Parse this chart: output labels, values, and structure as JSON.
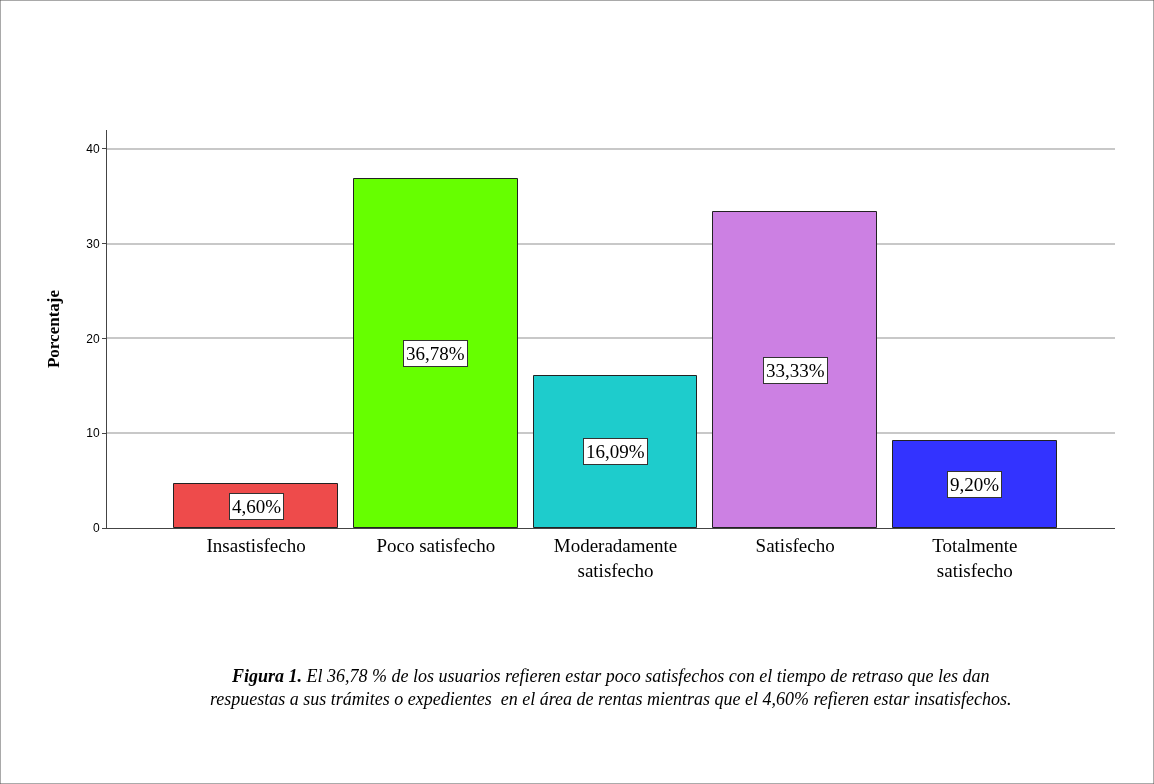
{
  "chart_data": {
    "type": "bar",
    "ylabel": "Porcentaje",
    "categories": [
      "Insastisfecho",
      "Poco satisfecho",
      "Moderadamente\nsatisfecho",
      "Satisfecho",
      "Totalmente\nsatisfecho"
    ],
    "values": [
      4.6,
      36.78,
      16.09,
      33.33,
      9.2
    ],
    "colors": [
      "#ee4b4b",
      "#66ff00",
      "#1ecccc",
      "#cc80e3",
      "#3333ff"
    ],
    "value_labels": [
      "4,60%",
      "36,78%",
      "16,09%",
      "33,33%",
      "9,20%"
    ],
    "ylim": [
      0,
      42
    ],
    "yticks": [
      0,
      10,
      20,
      30,
      40
    ],
    "grid": "y",
    "legend": false,
    "annotations": [
      "Figura 1.",
      "El 36,78 % de los usuarios refieren estar poco satisfechos con el tiempo de retraso que les dan\nrespuestas a sus trámites o expedientes  en el área de rentas mientras que el 4,60% refieren estar insatisfechos."
    ]
  }
}
